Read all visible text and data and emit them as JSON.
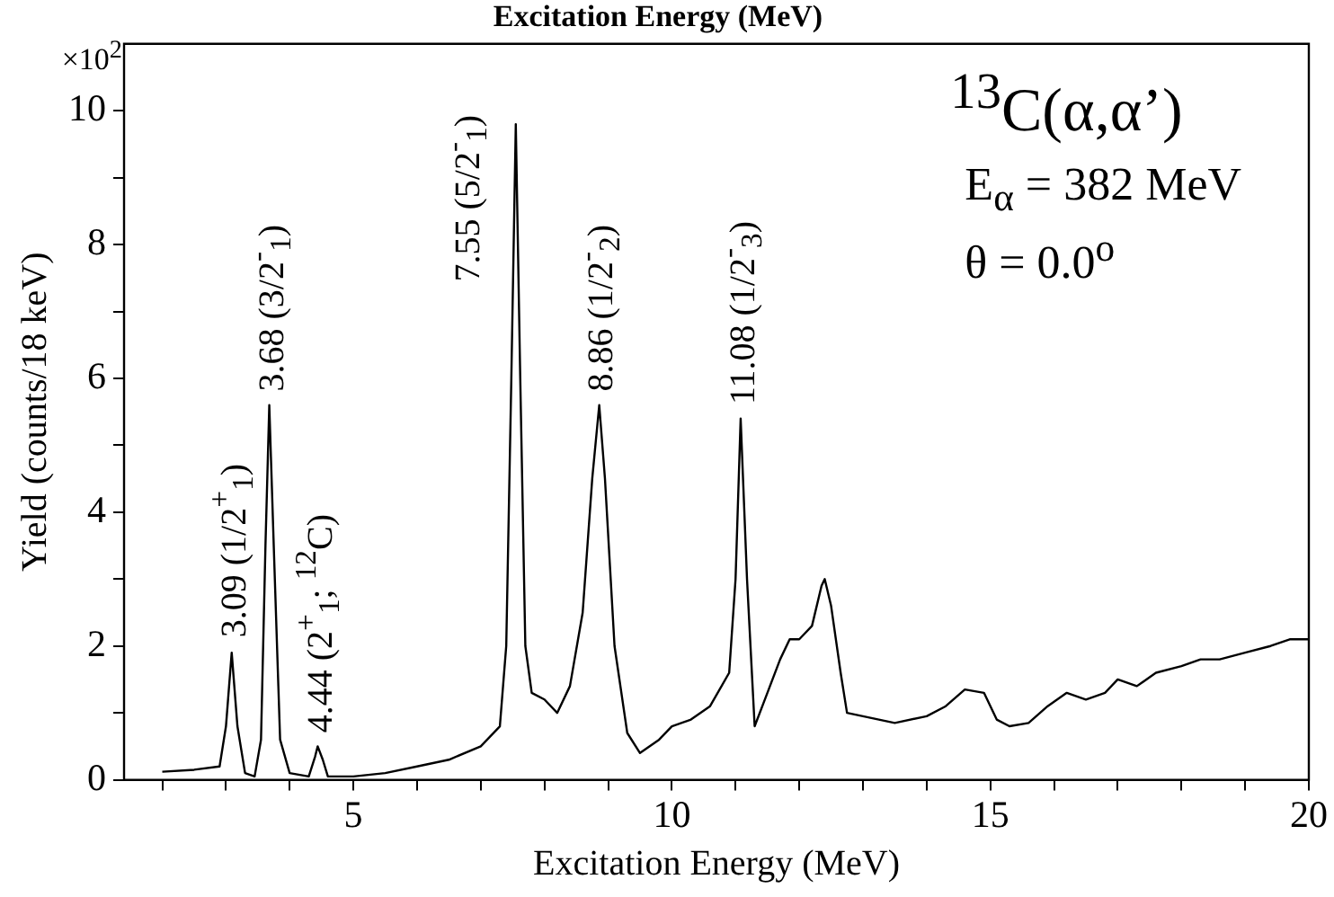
{
  "chart_data": {
    "type": "line",
    "title": "Excitation Energy (MeV)",
    "xlabel": "Excitation Energy (MeV)",
    "ylabel": "Yield (counts/18 keV)",
    "x": [
      2.0,
      2.5,
      2.9,
      3.0,
      3.09,
      3.18,
      3.3,
      3.45,
      3.55,
      3.62,
      3.68,
      3.75,
      3.85,
      4.0,
      4.3,
      4.4,
      4.44,
      4.52,
      4.6,
      5.0,
      5.5,
      6.0,
      6.5,
      7.0,
      7.3,
      7.4,
      7.48,
      7.55,
      7.62,
      7.7,
      7.8,
      8.0,
      8.2,
      8.4,
      8.6,
      8.75,
      8.86,
      8.95,
      9.1,
      9.3,
      9.5,
      9.8,
      10.0,
      10.3,
      10.6,
      10.9,
      11.0,
      11.08,
      11.18,
      11.3,
      11.5,
      11.7,
      11.85,
      12.0,
      12.2,
      12.35,
      12.4,
      12.5,
      12.65,
      12.75,
      13.0,
      13.5,
      14.0,
      14.3,
      14.6,
      14.9,
      15.1,
      15.3,
      15.6,
      15.9,
      16.2,
      16.5,
      16.8,
      17.0,
      17.3,
      17.6,
      18.0,
      18.3,
      18.6,
      19.0,
      19.4,
      19.7,
      20.0
    ],
    "series": [
      {
        "color": "#000000",
        "values": [
          0.12,
          0.15,
          0.2,
          0.8,
          1.9,
          0.8,
          0.1,
          0.05,
          0.6,
          3.5,
          5.6,
          3.5,
          0.6,
          0.1,
          0.05,
          0.35,
          0.5,
          0.3,
          0.05,
          0.05,
          0.1,
          0.2,
          0.3,
          0.5,
          0.8,
          2.0,
          6.0,
          9.8,
          6.0,
          2.0,
          1.3,
          1.2,
          1.0,
          1.4,
          2.5,
          4.5,
          5.6,
          4.5,
          2.0,
          0.7,
          0.4,
          0.6,
          0.8,
          0.9,
          1.1,
          1.6,
          3.0,
          5.4,
          3.0,
          0.8,
          1.3,
          1.8,
          2.1,
          2.1,
          2.3,
          2.9,
          3.0,
          2.6,
          1.6,
          1.0,
          0.95,
          0.85,
          0.95,
          1.1,
          1.35,
          1.3,
          0.9,
          0.8,
          0.85,
          1.1,
          1.3,
          1.2,
          1.3,
          1.5,
          1.4,
          1.6,
          1.7,
          1.8,
          1.8,
          1.9,
          2.0,
          2.1,
          2.1
        ]
      }
    ],
    "xlim": [
      1.4,
      20
    ],
    "ylim": [
      0,
      11
    ],
    "xticks": [
      {
        "value": 2,
        "label": null
      },
      {
        "value": 3,
        "label": null
      },
      {
        "value": 4,
        "label": null
      },
      5,
      {
        "value": 6,
        "label": null
      },
      {
        "value": 7,
        "label": null
      },
      {
        "value": 8,
        "label": null
      },
      {
        "value": 9,
        "label": null
      },
      10,
      {
        "value": 11,
        "label": null
      },
      {
        "value": 12,
        "label": null
      },
      {
        "value": 13,
        "label": null
      },
      {
        "value": 14,
        "label": null
      },
      15,
      {
        "value": 16,
        "label": null
      },
      {
        "value": 17,
        "label": null
      },
      {
        "value": 18,
        "label": null
      },
      {
        "value": 19,
        "label": null
      },
      20
    ],
    "yticks": [
      0,
      {
        "value": 1,
        "label": null
      },
      2,
      {
        "value": 3,
        "label": null
      },
      4,
      {
        "value": 5,
        "label": null
      },
      6,
      {
        "value": 7,
        "label": null
      },
      8,
      {
        "value": 9,
        "label": null
      },
      10
    ],
    "marker": "none",
    "line_style": "solid",
    "legend": false,
    "grid": false,
    "annotations": [
      "×10$^{2}$",
      {
        "text": "3.09 (1/2$^{+}$$_{1}$)",
        "x": 3.09,
        "y": 1.9
      },
      {
        "text": "3.68 (3/2$^{-}$$_{1}$)",
        "x": 3.68,
        "y": 5.6
      },
      {
        "text": "4.44 (2$^{+}$$_{1}$; $^{12}$C)",
        "x": 4.44,
        "y": 0.5
      },
      {
        "text": "7.55 (5/2$^{-}$$_{1}$)",
        "x": 7.55,
        "y": 9.8
      },
      {
        "text": "8.86 (1/2$^{-}$$_{2}$)",
        "x": 8.86,
        "y": 5.6
      },
      {
        "text": "11.08 (1/2$^{-}$$_{3}$)",
        "x": 11.08,
        "y": 5.4
      },
      "$^{13}$C(α,α’)",
      "E$_{α}$ = 382 MeV",
      "θ = 0.0$^{o}$"
    ]
  }
}
